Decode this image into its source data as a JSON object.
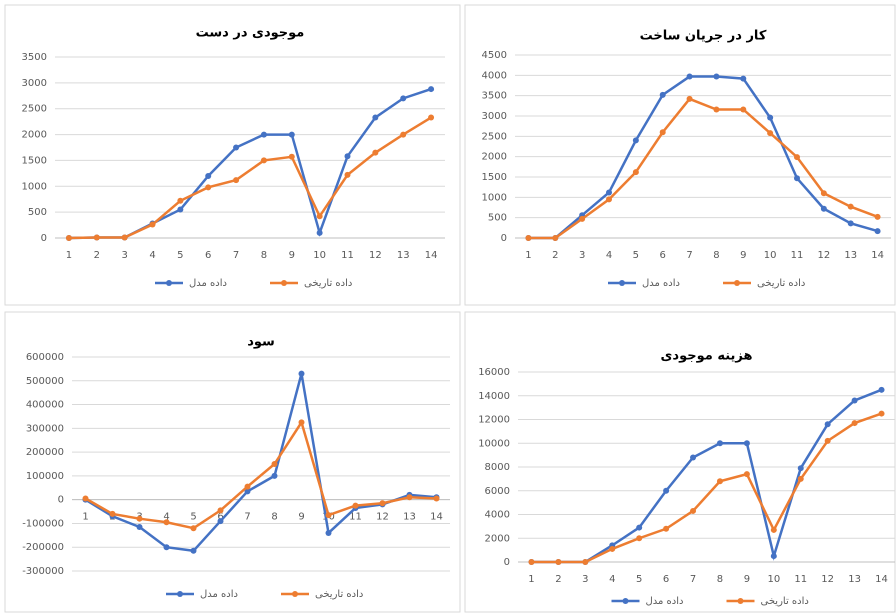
{
  "chart_data": [
    {
      "type": "line",
      "title": "موجودی در دست",
      "categories": [
        "1",
        "2",
        "3",
        "4",
        "5",
        "6",
        "7",
        "8",
        "9",
        "10",
        "11",
        "12",
        "13",
        "14"
      ],
      "ylim": [
        0,
        3500
      ],
      "yticks": [
        0,
        500,
        1000,
        1500,
        2000,
        2500,
        3000,
        3500
      ],
      "grid": true,
      "series": [
        {
          "name": "داده مدل",
          "color": "#4472c4",
          "values": [
            0,
            10,
            10,
            280,
            550,
            1200,
            1750,
            2000,
            2000,
            100,
            1580,
            2330,
            2700,
            2880
          ]
        },
        {
          "name": "داده تاریخی",
          "color": "#ed7d31",
          "values": [
            0,
            10,
            10,
            260,
            720,
            980,
            1120,
            1500,
            1570,
            420,
            1220,
            1650,
            2000,
            2330
          ]
        }
      ]
    },
    {
      "type": "line",
      "title": "کار در جریان ساخت",
      "categories": [
        "1",
        "2",
        "3",
        "4",
        "5",
        "6",
        "7",
        "8",
        "9",
        "10",
        "11",
        "12",
        "13",
        "14"
      ],
      "ylim": [
        0,
        4500
      ],
      "yticks": [
        0,
        500,
        1000,
        1500,
        2000,
        2500,
        3000,
        3500,
        4000,
        4500
      ],
      "grid": true,
      "series": [
        {
          "name": "داده مدل",
          "color": "#4472c4",
          "values": [
            0,
            0,
            560,
            1120,
            2400,
            3520,
            3970,
            3970,
            3920,
            2960,
            1470,
            720,
            360,
            170
          ]
        },
        {
          "name": "داده تاریخی",
          "color": "#ed7d31",
          "values": [
            0,
            0,
            470,
            950,
            1620,
            2600,
            3420,
            3160,
            3160,
            2580,
            1990,
            1100,
            770,
            520
          ]
        }
      ]
    },
    {
      "type": "line",
      "title": "سود",
      "categories": [
        "1",
        "2",
        "3",
        "4",
        "5",
        "6",
        "7",
        "8",
        "9",
        "10",
        "11",
        "12",
        "13",
        "14"
      ],
      "ylim": [
        -300000,
        600000
      ],
      "yticks": [
        -300000,
        -200000,
        -100000,
        0,
        100000,
        200000,
        300000,
        400000,
        500000,
        600000
      ],
      "grid": true,
      "series": [
        {
          "name": "داده مدل",
          "color": "#4472c4",
          "values": [
            0,
            -70000,
            -115000,
            -200000,
            -215000,
            -90000,
            35000,
            100000,
            530000,
            -140000,
            -35000,
            -20000,
            20000,
            10000
          ]
        },
        {
          "name": "داده تاریخی",
          "color": "#ed7d31",
          "values": [
            5000,
            -60000,
            -80000,
            -95000,
            -120000,
            -45000,
            55000,
            150000,
            325000,
            -65000,
            -25000,
            -15000,
            10000,
            5000
          ]
        }
      ]
    },
    {
      "type": "line",
      "title": "هزینه موجودی",
      "categories": [
        "1",
        "2",
        "3",
        "4",
        "5",
        "6",
        "7",
        "8",
        "9",
        "10",
        "11",
        "12",
        "13",
        "14"
      ],
      "ylim": [
        0,
        16000
      ],
      "yticks": [
        0,
        2000,
        4000,
        6000,
        8000,
        10000,
        12000,
        14000,
        16000
      ],
      "grid": true,
      "series": [
        {
          "name": "داده مدل",
          "color": "#4472c4",
          "values": [
            0,
            0,
            0,
            1400,
            2900,
            6000,
            8800,
            10000,
            10000,
            500,
            7900,
            11600,
            13600,
            14500
          ]
        },
        {
          "name": "داده تاریخی",
          "color": "#ed7d31",
          "values": [
            0,
            0,
            0,
            1100,
            2000,
            2800,
            4300,
            6800,
            7400,
            2700,
            7000,
            10200,
            11700,
            12500
          ]
        }
      ]
    }
  ]
}
